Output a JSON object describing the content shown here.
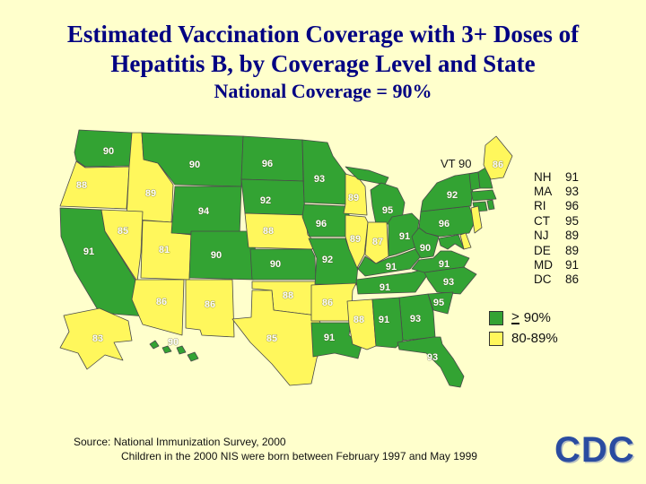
{
  "title": {
    "line1": "Estimated Vaccination Coverage with 3+ Doses of",
    "line2": "Hepatitis B, by Coverage Level and State",
    "line3": "National Coverage = 90%"
  },
  "colors": {
    "background": "#FFFFCC",
    "title_text": "#000082",
    "high": "#33A333",
    "mid": "#FFF75C",
    "state_border": "#4A4A4A",
    "state_label": "#FFFFFF",
    "text": "#111111",
    "logo_blue": "#2A4CA0"
  },
  "map": {
    "vt_label": "VT 90",
    "states": [
      {
        "id": "WA",
        "value": "90",
        "level": "high"
      },
      {
        "id": "OR",
        "value": "88",
        "level": "mid"
      },
      {
        "id": "CA",
        "value": "91",
        "level": "high"
      },
      {
        "id": "ID",
        "value": "89",
        "level": "mid"
      },
      {
        "id": "NV",
        "value": "85",
        "level": "mid"
      },
      {
        "id": "UT",
        "value": "81",
        "level": "mid"
      },
      {
        "id": "AZ",
        "value": "86",
        "level": "mid"
      },
      {
        "id": "MT",
        "value": "90",
        "level": "high"
      },
      {
        "id": "WY",
        "value": "94",
        "level": "high"
      },
      {
        "id": "CO",
        "value": "90",
        "level": "high"
      },
      {
        "id": "NM",
        "value": "86",
        "level": "mid"
      },
      {
        "id": "ND",
        "value": "96",
        "level": "high"
      },
      {
        "id": "SD",
        "value": "92",
        "level": "high"
      },
      {
        "id": "NE",
        "value": "88",
        "level": "mid"
      },
      {
        "id": "KS",
        "value": "90",
        "level": "high"
      },
      {
        "id": "OK",
        "value": "88",
        "level": "mid"
      },
      {
        "id": "TX",
        "value": "85",
        "level": "mid"
      },
      {
        "id": "MN",
        "value": "93",
        "level": "high"
      },
      {
        "id": "IA",
        "value": "96",
        "level": "high"
      },
      {
        "id": "MO",
        "value": "92",
        "level": "high"
      },
      {
        "id": "AR",
        "value": "86",
        "level": "mid"
      },
      {
        "id": "LA",
        "value": "91",
        "level": "high"
      },
      {
        "id": "WI",
        "value": "89",
        "level": "mid"
      },
      {
        "id": "IL",
        "value": "89",
        "level": "mid"
      },
      {
        "id": "MS",
        "value": "88",
        "level": "mid"
      },
      {
        "id": "MI",
        "value": "95",
        "level": "high"
      },
      {
        "id": "IN",
        "value": "87",
        "level": "mid"
      },
      {
        "id": "OH",
        "value": "91",
        "level": "high"
      },
      {
        "id": "KY",
        "value": "91",
        "level": "high"
      },
      {
        "id": "TN",
        "value": "91",
        "level": "high"
      },
      {
        "id": "WV",
        "value": "90",
        "level": "high"
      },
      {
        "id": "VA",
        "value": "91",
        "level": "high"
      },
      {
        "id": "NC",
        "value": "93",
        "level": "high"
      },
      {
        "id": "SC",
        "value": "95",
        "level": "high"
      },
      {
        "id": "GA",
        "value": "93",
        "level": "high"
      },
      {
        "id": "AL",
        "value": "91",
        "level": "high"
      },
      {
        "id": "FL",
        "value": "93",
        "level": "high"
      },
      {
        "id": "PA",
        "value": "96",
        "level": "high"
      },
      {
        "id": "NY",
        "value": "92",
        "level": "high"
      },
      {
        "id": "VT",
        "value": "",
        "level": "high"
      },
      {
        "id": "NH",
        "value": "",
        "level": "high"
      },
      {
        "id": "ME",
        "value": "86",
        "level": "mid"
      },
      {
        "id": "MA",
        "value": "",
        "level": "high"
      },
      {
        "id": "CT",
        "value": "",
        "level": "high"
      },
      {
        "id": "RI",
        "value": "",
        "level": "high"
      },
      {
        "id": "NJ",
        "value": "",
        "level": "mid"
      },
      {
        "id": "MD",
        "value": "",
        "level": "high"
      },
      {
        "id": "DE",
        "value": "",
        "level": "mid"
      },
      {
        "id": "AK",
        "value": "83",
        "level": "mid"
      },
      {
        "id": "HI",
        "value": "90",
        "level": "high"
      }
    ]
  },
  "northeast_list": [
    {
      "code": "NH",
      "value": "91"
    },
    {
      "code": "MA",
      "value": "93"
    },
    {
      "code": "RI",
      "value": "96"
    },
    {
      "code": "CT",
      "value": "95"
    },
    {
      "code": "NJ",
      "value": "89"
    },
    {
      "code": "DE",
      "value": "89"
    },
    {
      "code": "MD",
      "value": "91"
    },
    {
      "code": "DC",
      "value": "86"
    }
  ],
  "legend": {
    "items": [
      {
        "symbol": ">",
        "label": "90%",
        "level": "high"
      },
      {
        "symbol": "",
        "label": "80-89%",
        "level": "mid"
      }
    ]
  },
  "source": {
    "line1": "Source:  National Immunization Survey, 2000",
    "line2": "Children in the 2000 NIS were born between February 1997 and May 1999"
  },
  "logo_text": "CDC"
}
